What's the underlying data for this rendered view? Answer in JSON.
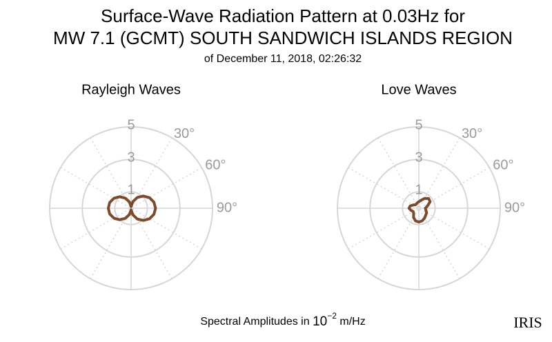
{
  "title": [
    "Surface-Wave Radiation Pattern at 0.03Hz for",
    "MW 7.1 (GCMT) SOUTH SANDWICH ISLANDS REGION"
  ],
  "subtitle": "of December 11, 2018, 02:26:32",
  "caption": {
    "text": "Spectral Amplitudes in",
    "base": "10",
    "exponent": "−2",
    "unit": "m/Hz"
  },
  "logo": "IRIS",
  "chart_data": [
    {
      "type": "polar",
      "title": "Rayleigh Waves",
      "theta": [
        0,
        15,
        30,
        45,
        60,
        75,
        90,
        105,
        120,
        135,
        150,
        165,
        180,
        195,
        210,
        225,
        240,
        255,
        270,
        285,
        300,
        315,
        330,
        345
      ],
      "series": [
        {
          "color": "#7b4b2b",
          "values": [
            0.1,
            0.42,
            0.76,
            1.06,
            1.3,
            1.45,
            1.5,
            1.45,
            1.3,
            1.06,
            0.76,
            0.42,
            0.1,
            0.4,
            0.72,
            1.0,
            1.22,
            1.36,
            1.4,
            1.36,
            1.22,
            1.0,
            0.72,
            0.4
          ]
        }
      ],
      "rlim": [
        0,
        5
      ],
      "rticks": [
        1,
        3,
        5
      ],
      "thetaticks": [
        {
          "value": 30,
          "label": "30°"
        },
        {
          "value": 60,
          "label": "60°"
        },
        {
          "value": 90,
          "label": "90°"
        }
      ]
    },
    {
      "type": "polar",
      "title": "Love Waves",
      "theta": [
        0,
        15,
        30,
        45,
        60,
        75,
        90,
        105,
        120,
        135,
        150,
        165,
        180,
        195,
        210,
        225,
        240,
        255,
        270,
        285,
        300,
        315,
        330,
        345
      ],
      "series": [
        {
          "color": "#7b4b2b",
          "values": [
            0.4,
            0.5,
            0.7,
            0.85,
            0.8,
            0.55,
            0.4,
            0.45,
            0.55,
            0.6,
            0.7,
            0.8,
            0.85,
            0.8,
            0.65,
            0.45,
            0.4,
            0.5,
            0.6,
            0.55,
            0.4,
            0.3,
            0.3,
            0.35
          ]
        }
      ],
      "rlim": [
        0,
        5
      ],
      "rticks": [
        1,
        3,
        5
      ],
      "thetaticks": [
        {
          "value": 30,
          "label": "30°"
        },
        {
          "value": 60,
          "label": "60°"
        },
        {
          "value": 90,
          "label": "90°"
        }
      ]
    }
  ]
}
